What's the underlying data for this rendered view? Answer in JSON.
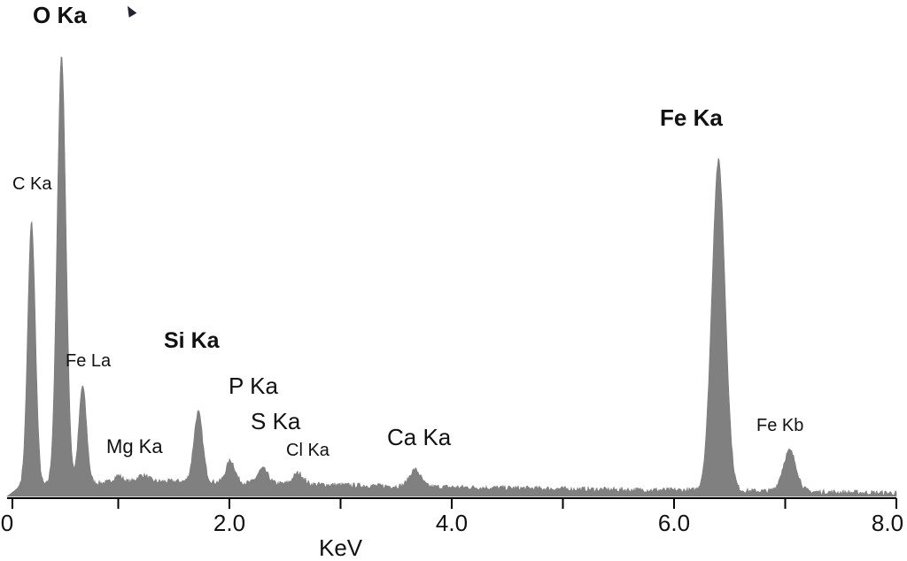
{
  "chart_data": {
    "type": "area",
    "title": "",
    "xlabel": "KeV",
    "ylabel": "",
    "xlim": [
      0,
      8.0
    ],
    "ylim": [
      0,
      540
    ],
    "x_ticks": [
      0,
      1,
      2,
      3,
      4,
      5,
      6,
      7,
      8
    ],
    "x_tick_labels": [
      "0",
      "",
      "2.0",
      "",
      "4.0",
      "",
      "6.0",
      "",
      "8.0"
    ],
    "grid": false,
    "fill_color": "#808080",
    "background": [
      [
        0,
        0
      ],
      [
        0.12,
        12
      ],
      [
        0.8,
        16
      ],
      [
        1.5,
        18
      ],
      [
        2.5,
        15
      ],
      [
        3.5,
        12
      ],
      [
        4.5,
        10
      ],
      [
        5.5,
        8
      ],
      [
        6.5,
        7
      ],
      [
        7.5,
        5
      ],
      [
        8,
        4
      ]
    ],
    "peaks": [
      {
        "label": "C Ka",
        "energy": 0.22,
        "intensity": 310,
        "sigma": 0.035,
        "bold": false
      },
      {
        "label": "O Ka",
        "energy": 0.49,
        "intensity": 505,
        "sigma": 0.04,
        "bold": true
      },
      {
        "label": "Fe La",
        "energy": 0.68,
        "intensity": 115,
        "sigma": 0.035,
        "bold": false
      },
      {
        "label": "",
        "energy": 1.0,
        "intensity": 8,
        "sigma": 0.04,
        "bold": false
      },
      {
        "label": "Mg Ka",
        "energy": 1.22,
        "intensity": 8,
        "sigma": 0.05,
        "bold": false
      },
      {
        "label": "Si Ka",
        "energy": 1.72,
        "intensity": 82,
        "sigma": 0.04,
        "bold": true
      },
      {
        "label": "P Ka",
        "energy": 2.01,
        "intensity": 26,
        "sigma": 0.04,
        "bold": false
      },
      {
        "label": "S Ka",
        "energy": 2.3,
        "intensity": 17,
        "sigma": 0.045,
        "bold": false
      },
      {
        "label": "Cl Ka",
        "energy": 2.62,
        "intensity": 13,
        "sigma": 0.045,
        "bold": false
      },
      {
        "label": "Ca Ka",
        "energy": 3.67,
        "intensity": 20,
        "sigma": 0.05,
        "bold": false
      },
      {
        "label": "Fe Ka",
        "energy": 6.4,
        "intensity": 388,
        "sigma": 0.06,
        "bold": true
      },
      {
        "label": "Fe Kb",
        "energy": 7.04,
        "intensity": 48,
        "sigma": 0.06,
        "bold": false
      }
    ],
    "labels": {
      "o_ka": "O Ka",
      "c_ka": "C Ka",
      "fe_la": "Fe La",
      "mg_ka": "Mg Ka",
      "si_ka": "Si Ka",
      "p_ka": "P Ka",
      "s_ka": "S Ka",
      "cl_ka": "Cl Ka",
      "ca_ka": "Ca Ka",
      "fe_ka": "Fe Ka",
      "fe_kb": "Fe Kb"
    }
  }
}
